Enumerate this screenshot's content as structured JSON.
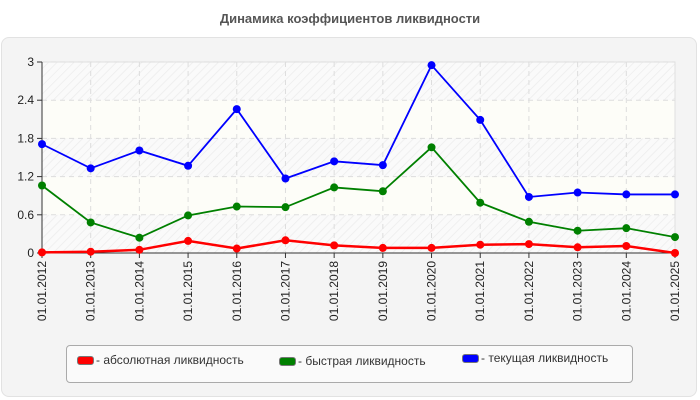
{
  "title": "Динамика коэффициентов ликвидности",
  "chart_data": {
    "type": "line",
    "title": "Динамика коэффициентов ликвидности",
    "xlabel": "",
    "ylabel": "",
    "ylim": [
      0,
      3
    ],
    "yticks": [
      "0",
      "0.6",
      "1.2",
      "1.8",
      "2.4",
      "3"
    ],
    "grid": true,
    "legend_position": "bottom",
    "categories": [
      "01.01.2012",
      "01.01.2013",
      "01.01.2014",
      "01.01.2015",
      "01.01.2016",
      "01.01.2017",
      "01.01.2018",
      "01.01.2019",
      "01.01.2020",
      "01.01.2021",
      "01.01.2022",
      "01.01.2023",
      "01.01.2024",
      "01.01.2025"
    ],
    "series": [
      {
        "name": "абсолютная ликвидность",
        "color": "#ff0000",
        "values": [
          0.01,
          0.02,
          0.05,
          0.19,
          0.07,
          0.2,
          0.12,
          0.08,
          0.08,
          0.13,
          0.14,
          0.09,
          0.11,
          0.0
        ]
      },
      {
        "name": "быстрая ликвидность",
        "color": "#008000",
        "values": [
          1.06,
          0.48,
          0.24,
          0.59,
          0.73,
          0.72,
          1.03,
          0.97,
          1.66,
          0.79,
          0.49,
          0.35,
          0.39,
          0.25
        ]
      },
      {
        "name": "текущая ликвидность",
        "color": "#0000ff",
        "values": [
          1.71,
          1.33,
          1.61,
          1.37,
          2.26,
          1.17,
          1.44,
          1.38,
          2.95,
          2.09,
          0.88,
          0.95,
          0.92,
          0.92
        ]
      }
    ]
  },
  "legend": [
    {
      "label": "- абсолютная ликвидность",
      "color": "#ff0000"
    },
    {
      "label": "- быстрая ликвидность",
      "color": "#008000"
    },
    {
      "label": "- текущая ликвидность",
      "color": "#0000ff"
    }
  ]
}
